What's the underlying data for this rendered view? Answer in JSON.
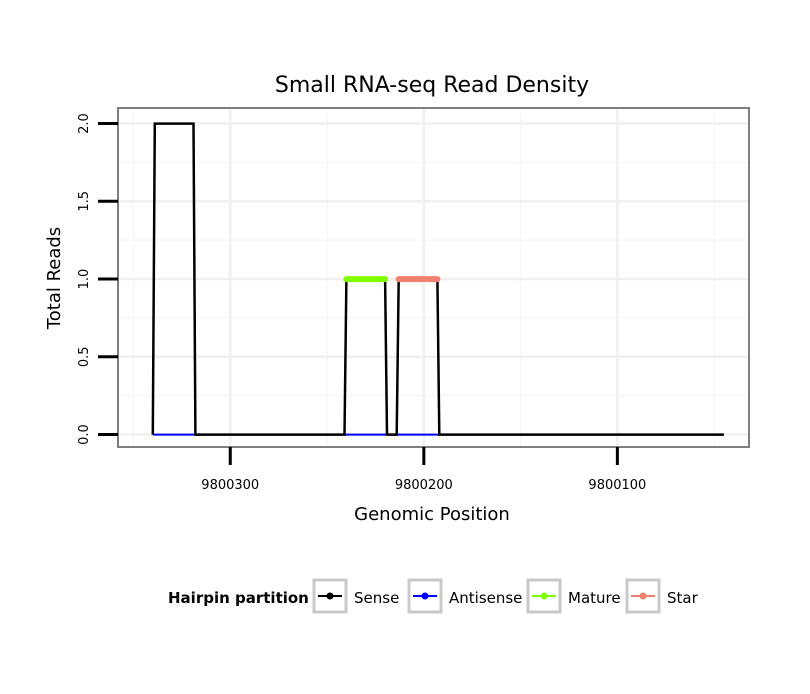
{
  "chart_data": {
    "type": "line",
    "title": "Small RNA-seq Read Density",
    "xlabel": "Genomic Position",
    "ylabel": "Total Reads",
    "x_reversed": true,
    "xlim": [
      9800358,
      9800032
    ],
    "ylim": [
      -0.08,
      2.1
    ],
    "x_ticks": [
      9800300,
      9800200,
      9800100
    ],
    "x_tick_labels": [
      "9800300",
      "9800200",
      "9800100"
    ],
    "y_ticks": [
      0,
      0.5,
      1,
      1.5,
      2
    ],
    "y_tick_labels": [
      "0.0",
      "0.5",
      "1.0",
      "1.5",
      "2.0"
    ],
    "grid": true,
    "series": [
      {
        "name": "Sense",
        "color": "#000000",
        "x": [
          9800340,
          9800339,
          9800319,
          9800318,
          9800241,
          9800240,
          9800220,
          9800219,
          9800214,
          9800213,
          9800193,
          9800192,
          9800045
        ],
        "y": [
          0,
          2,
          2,
          0,
          0,
          1,
          1,
          0,
          0,
          1,
          1,
          0,
          0
        ]
      },
      {
        "name": "Antisense",
        "color": "#0000ff",
        "x": [
          9800340,
          9800045
        ],
        "y": [
          0,
          0
        ]
      },
      {
        "name": "Mature",
        "color": "#80ff00",
        "x": [
          9800240,
          9800220
        ],
        "y": [
          1,
          1
        ]
      },
      {
        "name": "Star",
        "color": "#f08070",
        "x": [
          9800213,
          9800193
        ],
        "y": [
          1,
          1
        ]
      }
    ],
    "legend": {
      "title": "Hairpin partition",
      "position": "bottom",
      "entries": [
        "Sense",
        "Antisense",
        "Mature",
        "Star"
      ]
    }
  }
}
